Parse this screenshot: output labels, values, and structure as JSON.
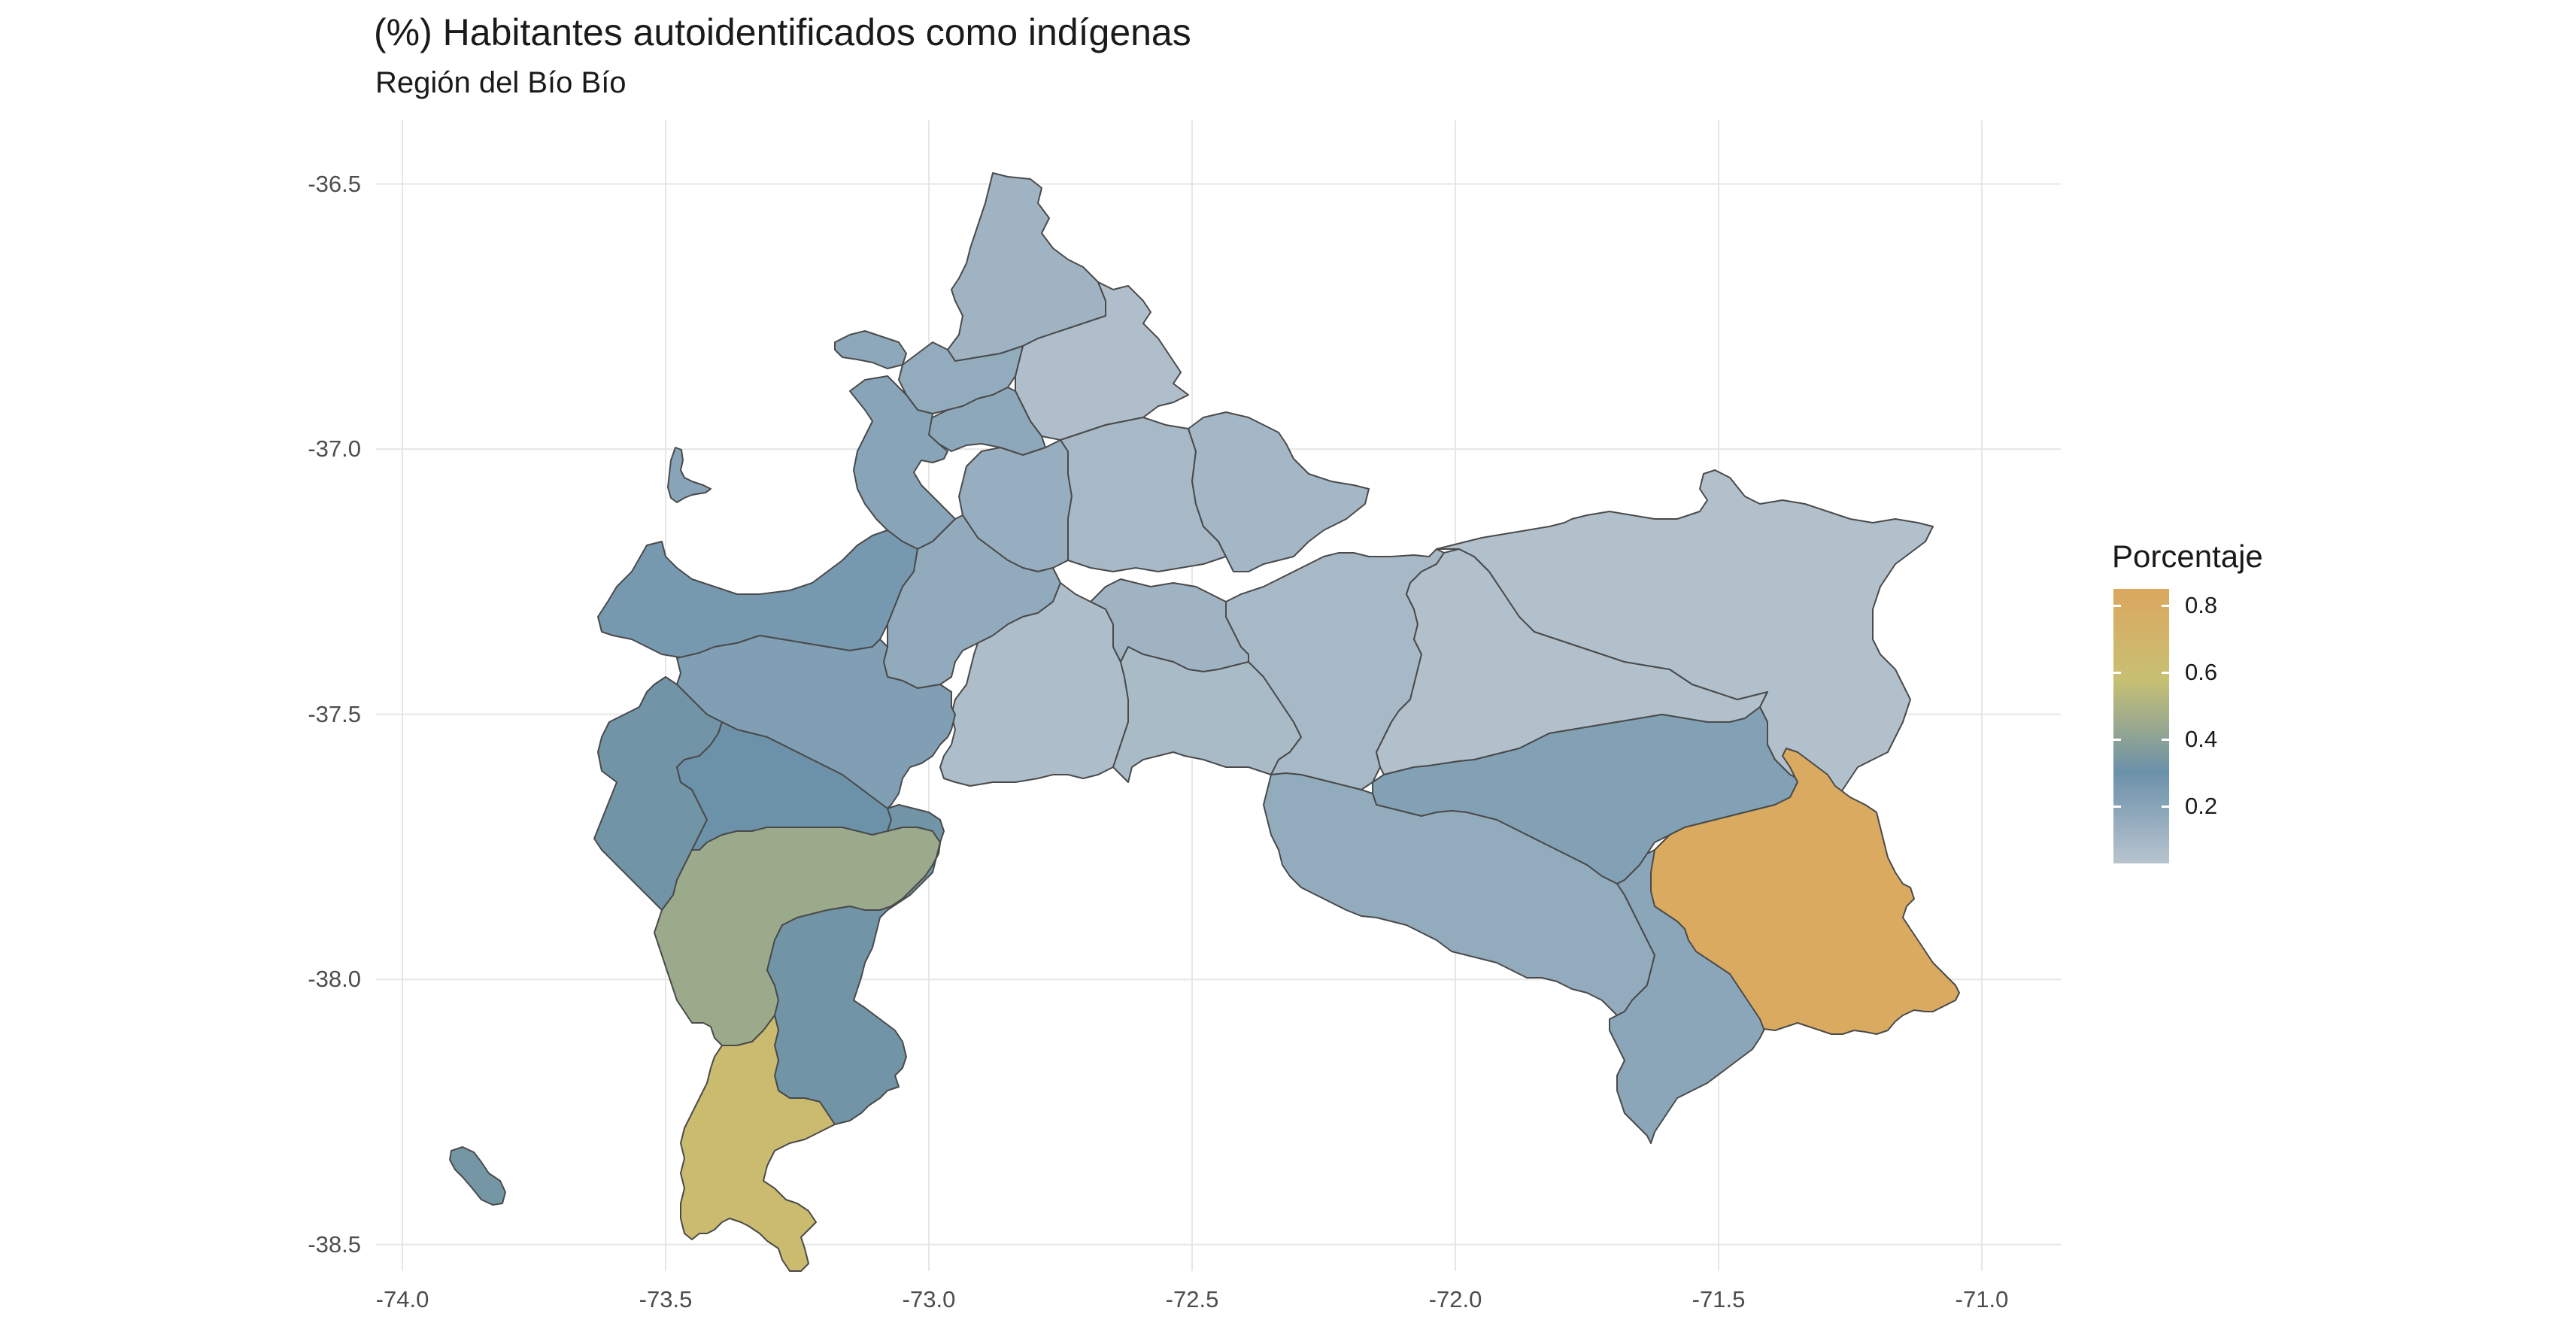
{
  "title": "(%) Habitantes autoidentificados como indígenas",
  "subtitle": "Región del Bío Bío",
  "legend": {
    "title": "Porcentaje",
    "ticks": [
      "0.2",
      "0.4",
      "0.6",
      "0.8"
    ],
    "tick_values": [
      0.2,
      0.4,
      0.6,
      0.8
    ],
    "range": [
      0.03,
      0.85
    ],
    "colors": [
      "#b8c4cf",
      "#6b91aa",
      "#c7c073",
      "#dca75e"
    ]
  },
  "axes": {
    "x": {
      "ticks": [
        "-74.0",
        "-73.5",
        "-73.0",
        "-72.5",
        "-72.0",
        "-71.5",
        "-71.0"
      ],
      "values": [
        -74.0,
        -73.5,
        -73.0,
        -72.5,
        -72.0,
        -71.5,
        -71.0
      ],
      "range": [
        -74.05,
        -70.85
      ]
    },
    "y": {
      "ticks": [
        "-36.5",
        "-37.0",
        "-37.5",
        "-38.0",
        "-38.5"
      ],
      "values": [
        -36.5,
        -37.0,
        -37.5,
        -38.0,
        -38.5
      ],
      "range": [
        -38.55,
        -36.38
      ]
    },
    "grid": true
  },
  "regions": [
    {
      "id": "north-tip",
      "value": 0.12
    },
    {
      "id": "north-east",
      "value": 0.06
    },
    {
      "id": "coast-north-small",
      "value": 0.18
    },
    {
      "id": "coast-north-mid",
      "value": 0.16
    },
    {
      "id": "coast-north-2",
      "value": 0.18
    },
    {
      "id": "coast-mid",
      "value": 0.2
    },
    {
      "id": "center-north",
      "value": 0.15
    },
    {
      "id": "center-north-2",
      "value": 0.09
    },
    {
      "id": "center-east-north",
      "value": 0.1
    },
    {
      "id": "arauco-north",
      "value": 0.26
    },
    {
      "id": "center-west",
      "value": 0.17
    },
    {
      "id": "center-1",
      "value": 0.07
    },
    {
      "id": "center-2",
      "value": 0.12
    },
    {
      "id": "center-3",
      "value": 0.08
    },
    {
      "id": "east-big",
      "value": 0.09
    },
    {
      "id": "east-band",
      "value": 0.05
    },
    {
      "id": "arauco-mid",
      "value": 0.23
    },
    {
      "id": "arauco-coast",
      "value": 0.32
    },
    {
      "id": "arauco-center",
      "value": 0.3
    },
    {
      "id": "south-center",
      "value": 0.45
    },
    {
      "id": "south-east-coast",
      "value": 0.32
    },
    {
      "id": "south-tip",
      "value": 0.63
    },
    {
      "id": "island-south",
      "value": 0.33
    },
    {
      "id": "island-north",
      "value": 0.2
    },
    {
      "id": "east-south-1",
      "value": 0.22
    },
    {
      "id": "east-south-2",
      "value": 0.16
    },
    {
      "id": "east-south-3",
      "value": 0.19
    },
    {
      "id": "east-highlight",
      "value": 0.82
    },
    {
      "id": "small-center-a",
      "value": 0.14
    },
    {
      "id": "small-center-b",
      "value": 0.11
    }
  ]
}
